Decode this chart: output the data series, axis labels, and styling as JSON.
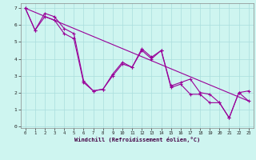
{
  "xlabel": "Windchill (Refroidissement éolien,°C)",
  "background_color": "#cef5f0",
  "grid_color": "#aadddd",
  "line_color": "#990099",
  "xlim": [
    -0.5,
    23.5
  ],
  "ylim": [
    -0.1,
    7.3
  ],
  "xticks": [
    0,
    1,
    2,
    3,
    4,
    5,
    6,
    7,
    8,
    9,
    10,
    11,
    12,
    13,
    14,
    15,
    16,
    17,
    18,
    19,
    20,
    21,
    22,
    23
  ],
  "yticks": [
    0,
    1,
    2,
    3,
    4,
    5,
    6,
    7
  ],
  "series1_x": [
    0,
    1,
    2,
    3,
    4,
    5,
    6,
    7,
    8,
    9,
    10,
    11,
    12,
    13,
    14,
    15,
    16,
    17,
    18,
    19,
    20,
    21,
    22,
    23
  ],
  "series1_y": [
    7.0,
    5.7,
    6.7,
    6.5,
    5.8,
    5.5,
    2.7,
    2.1,
    2.2,
    3.1,
    3.8,
    3.5,
    4.6,
    4.1,
    4.5,
    2.4,
    2.6,
    2.8,
    2.0,
    1.9,
    1.4,
    0.5,
    2.0,
    2.1
  ],
  "series2_x": [
    0,
    1,
    2,
    3,
    4,
    5,
    6,
    7,
    8,
    9,
    10,
    11,
    12,
    13,
    14,
    15,
    16,
    17,
    18,
    19,
    20,
    21,
    22,
    23
  ],
  "series2_y": [
    7.0,
    5.7,
    6.5,
    6.3,
    5.5,
    5.2,
    2.6,
    2.1,
    2.2,
    3.0,
    3.7,
    3.5,
    4.5,
    4.0,
    4.5,
    2.3,
    2.5,
    1.9,
    1.9,
    1.4,
    1.4,
    0.5,
    2.0,
    1.5
  ],
  "series3_x": [
    0,
    23
  ],
  "series3_y": [
    7.0,
    1.5
  ],
  "marker_size": 2.5,
  "linewidth": 0.8,
  "tick_fontsize": 4.0,
  "xlabel_fontsize": 5.0
}
